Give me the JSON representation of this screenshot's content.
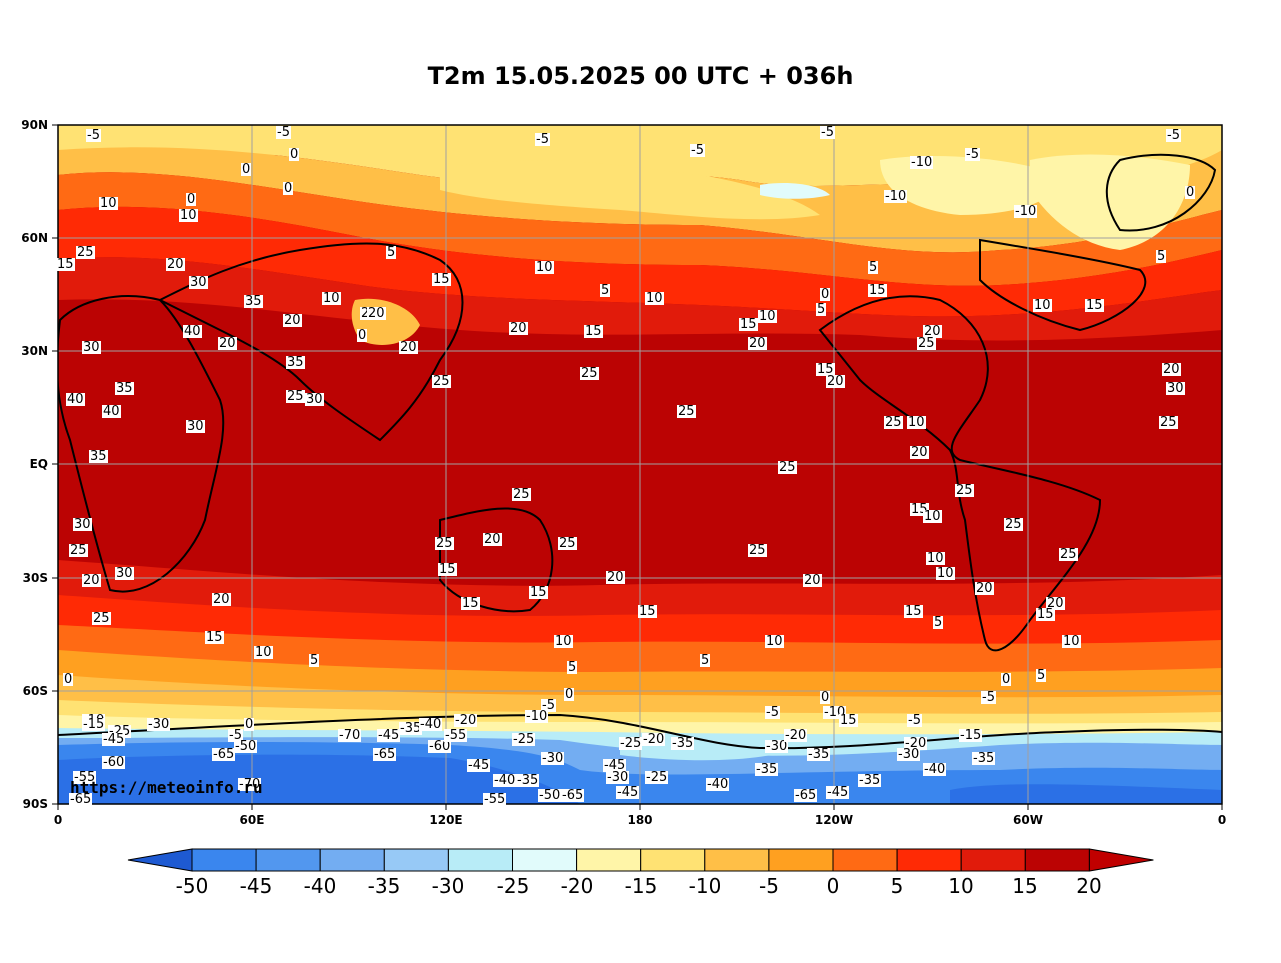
{
  "title": "T2m 15.05.2025 00 UTC + 036h",
  "watermark": "https://meteoinfo.ru",
  "lat_ticks": [
    "90N",
    "60N",
    "30N",
    "EQ",
    "30S",
    "60S",
    "90S"
  ],
  "lon_ticks": [
    "0",
    "60E",
    "120E",
    "180",
    "120W",
    "60W",
    "0"
  ],
  "colorbar": {
    "ticks": [
      "-50",
      "-45",
      "-40",
      "-35",
      "-30",
      "-25",
      "-20",
      "-15",
      "-10",
      "-5",
      "0",
      "5",
      "10",
      "15",
      "20"
    ],
    "colors": [
      "#2b70e6",
      "#3a86ee",
      "#5297ef",
      "#73adf2",
      "#97c9f6",
      "#b8ecf7",
      "#e1fbfb",
      "#fff5a8",
      "#ffe273",
      "#ffbf47",
      "#ffa020",
      "#ff6a14",
      "#ff2a05",
      "#e11b0b",
      "#bb0303"
    ],
    "low_color": "#1e5ad2",
    "high_color": "#c00000"
  },
  "contour_labels": [
    {
      "t": "-5",
      "lon": 11,
      "lat": 87
    },
    {
      "t": "-5",
      "lon": 70,
      "lat": 88
    },
    {
      "t": "-5",
      "lon": 150,
      "lat": 86
    },
    {
      "t": "-5",
      "lon": 198,
      "lat": 83
    },
    {
      "t": "-5",
      "lon": 238,
      "lat": 88
    },
    {
      "t": "-5",
      "lon": 283,
      "lat": 82
    },
    {
      "t": "-5",
      "lon": 345,
      "lat": 87
    },
    {
      "t": "0",
      "lon": 74,
      "lat": 82
    },
    {
      "t": "0",
      "lon": 59,
      "lat": 78
    },
    {
      "t": "0",
      "lon": 72,
      "lat": 73
    },
    {
      "t": "10",
      "lon": 15,
      "lat": 69
    },
    {
      "t": "10",
      "lon": 40,
      "lat": 66
    },
    {
      "t": "0",
      "lon": 42,
      "lat": 70
    },
    {
      "t": "-10",
      "lon": 266,
      "lat": 80
    },
    {
      "t": "-10",
      "lon": 258,
      "lat": 71
    },
    {
      "t": "-10",
      "lon": 298,
      "lat": 67
    },
    {
      "t": "5",
      "lon": 342,
      "lat": 55
    },
    {
      "t": "0",
      "lon": 351,
      "lat": 72
    },
    {
      "t": "15",
      "lon": 2,
      "lat": 53
    },
    {
      "t": "25",
      "lon": 8,
      "lat": 56
    },
    {
      "t": "20",
      "lon": 36,
      "lat": 53
    },
    {
      "t": "30",
      "lon": 43,
      "lat": 48
    },
    {
      "t": "35",
      "lon": 60,
      "lat": 43
    },
    {
      "t": "40",
      "lon": 41,
      "lat": 35
    },
    {
      "t": "30",
      "lon": 10,
      "lat": 31
    },
    {
      "t": "35",
      "lon": 20,
      "lat": 20
    },
    {
      "t": "40",
      "lon": 16,
      "lat": 14
    },
    {
      "t": "30",
      "lon": 42,
      "lat": 10
    },
    {
      "t": "40",
      "lon": 5,
      "lat": 17
    },
    {
      "t": "35",
      "lon": 12,
      "lat": 2
    },
    {
      "t": "30",
      "lon": 7,
      "lat": -16
    },
    {
      "t": "25",
      "lon": 6,
      "lat": -23
    },
    {
      "t": "20",
      "lon": 10,
      "lat": -31
    },
    {
      "t": "25",
      "lon": 13,
      "lat": -41
    },
    {
      "t": "30",
      "lon": 20,
      "lat": -29
    },
    {
      "t": "20",
      "lon": 50,
      "lat": -36
    },
    {
      "t": "15",
      "lon": 48,
      "lat": -46
    },
    {
      "t": "10",
      "lon": 63,
      "lat": -50
    },
    {
      "t": "5",
      "lon": 80,
      "lat": -52
    },
    {
      "t": "0",
      "lon": 60,
      "lat": -69
    },
    {
      "t": "0",
      "lon": 4,
      "lat": -57
    },
    {
      "t": "-5",
      "lon": 55,
      "lat": -72
    },
    {
      "t": "20",
      "lon": 52,
      "lat": 32
    },
    {
      "t": "25",
      "lon": 73,
      "lat": 18
    },
    {
      "t": "35",
      "lon": 73,
      "lat": 27
    },
    {
      "t": "30",
      "lon": 79,
      "lat": 17
    },
    {
      "t": "20",
      "lon": 72,
      "lat": 38
    },
    {
      "t": "10",
      "lon": 84,
      "lat": 44
    },
    {
      "t": "25",
      "lon": 96,
      "lat": 40
    },
    {
      "t": "0",
      "lon": 95,
      "lat": 34
    },
    {
      "t": "20",
      "lon": 98,
      "lat": 40
    },
    {
      "t": "20",
      "lon": 108,
      "lat": 31
    },
    {
      "t": "25",
      "lon": 118,
      "lat": 22
    },
    {
      "t": "15",
      "lon": 118,
      "lat": 49
    },
    {
      "t": "5",
      "lon": 104,
      "lat": 56
    },
    {
      "t": "10",
      "lon": 150,
      "lat": 52
    },
    {
      "t": "20",
      "lon": 142,
      "lat": 36
    },
    {
      "t": "15",
      "lon": 165,
      "lat": 35
    },
    {
      "t": "5",
      "lon": 170,
      "lat": 46
    },
    {
      "t": "10",
      "lon": 184,
      "lat": 44
    },
    {
      "t": "20",
      "lon": 216,
      "lat": 32
    },
    {
      "t": "25",
      "lon": 164,
      "lat": 24
    },
    {
      "t": "25",
      "lon": 194,
      "lat": 14
    },
    {
      "t": "25",
      "lon": 225,
      "lat": -1
    },
    {
      "t": "25",
      "lon": 143,
      "lat": -8
    },
    {
      "t": "20",
      "lon": 134,
      "lat": -20
    },
    {
      "t": "25",
      "lon": 119,
      "lat": -21
    },
    {
      "t": "15",
      "lon": 120,
      "lat": -28
    },
    {
      "t": "15",
      "lon": 127,
      "lat": -37
    },
    {
      "t": "15",
      "lon": 148,
      "lat": -34
    },
    {
      "t": "10",
      "lon": 156,
      "lat": -47
    },
    {
      "t": "25",
      "lon": 157,
      "lat": -21
    },
    {
      "t": "20",
      "lon": 172,
      "lat": -30
    },
    {
      "t": "15",
      "lon": 182,
      "lat": -39
    },
    {
      "t": "5",
      "lon": 160,
      "lat": -54
    },
    {
      "t": "0",
      "lon": 159,
      "lat": -61
    },
    {
      "t": "25",
      "lon": 216,
      "lat": -23
    },
    {
      "t": "20",
      "lon": 233,
      "lat": -31
    },
    {
      "t": "10",
      "lon": 221,
      "lat": -47
    },
    {
      "t": "5",
      "lon": 201,
      "lat": -52
    },
    {
      "t": "-5",
      "lon": 152,
      "lat": -64
    },
    {
      "t": "-10",
      "lon": 147,
      "lat": -67
    },
    {
      "t": "10",
      "lon": 219,
      "lat": 39
    },
    {
      "t": "15",
      "lon": 213,
      "lat": 37
    },
    {
      "t": "15",
      "lon": 237,
      "lat": 25
    },
    {
      "t": "20",
      "lon": 240,
      "lat": 22
    },
    {
      "t": "5",
      "lon": 237,
      "lat": 41
    },
    {
      "t": "0",
      "lon": 238,
      "lat": 45
    },
    {
      "t": "5",
      "lon": 253,
      "lat": 52
    },
    {
      "t": "15",
      "lon": 253,
      "lat": 46
    },
    {
      "t": "20",
      "lon": 270,
      "lat": 35
    },
    {
      "t": "25",
      "lon": 268,
      "lat": 32
    },
    {
      "t": "10",
      "lon": 304,
      "lat": 42
    },
    {
      "t": "15",
      "lon": 320,
      "lat": 42
    },
    {
      "t": "20",
      "lon": 344,
      "lat": 25
    },
    {
      "t": "30",
      "lon": 345,
      "lat": 20
    },
    {
      "t": "25",
      "lon": 343,
      "lat": 11
    },
    {
      "t": "25",
      "lon": 258,
      "lat": 11
    },
    {
      "t": "10",
      "lon": 265,
      "lat": 11
    },
    {
      "t": "20",
      "lon": 266,
      "lat": 3
    },
    {
      "t": "25",
      "lon": 280,
      "lat": -7
    },
    {
      "t": "15",
      "lon": 266,
      "lat": -12
    },
    {
      "t": "10",
      "lon": 270,
      "lat": -14
    },
    {
      "t": "25",
      "lon": 295,
      "lat": -16
    },
    {
      "t": "25",
      "lon": 312,
      "lat": -24
    },
    {
      "t": "10",
      "lon": 271,
      "lat": -25
    },
    {
      "t": "10",
      "lon": 274,
      "lat": -29
    },
    {
      "t": "20",
      "lon": 286,
      "lat": -33
    },
    {
      "t": "20",
      "lon": 308,
      "lat": -37
    },
    {
      "t": "15",
      "lon": 264,
      "lat": -39
    },
    {
      "t": "5",
      "lon": 273,
      "lat": -42
    },
    {
      "t": "15",
      "lon": 305,
      "lat": -40
    },
    {
      "t": "10",
      "lon": 313,
      "lat": -47
    },
    {
      "t": "5",
      "lon": 305,
      "lat": -56
    },
    {
      "t": "0",
      "lon": 294,
      "lat": -57
    },
    {
      "t": "-5",
      "lon": 288,
      "lat": -62
    },
    {
      "t": "0",
      "lon": 238,
      "lat": -62
    },
    {
      "t": "-10",
      "lon": 239,
      "lat": -66
    },
    {
      "t": "15",
      "lon": 244,
      "lat": -68
    },
    {
      "t": "-5",
      "lon": 221,
      "lat": -66
    },
    {
      "t": "-5",
      "lon": 265,
      "lat": -68
    },
    {
      "t": "-10",
      "lon": 10,
      "lat": -68
    },
    {
      "t": "-15",
      "lon": 10,
      "lat": -69
    },
    {
      "t": "-25",
      "lon": 18,
      "lat": -71
    },
    {
      "t": "-45",
      "lon": 16,
      "lat": -73
    },
    {
      "t": "-30",
      "lon": 30,
      "lat": -69
    },
    {
      "t": "-60",
      "lon": 16,
      "lat": -79
    },
    {
      "t": "-55",
      "lon": 7,
      "lat": -83
    },
    {
      "t": "-65",
      "lon": 6,
      "lat": -89
    },
    {
      "t": "-65",
      "lon": 50,
      "lat": -77
    },
    {
      "t": "-50",
      "lon": 57,
      "lat": -75
    },
    {
      "t": "-70",
      "lon": 58,
      "lat": -85
    },
    {
      "t": "-70",
      "lon": 89,
      "lat": -72
    },
    {
      "t": "-65",
      "lon": 100,
      "lat": -77
    },
    {
      "t": "-45",
      "lon": 101,
      "lat": -72
    },
    {
      "t": "-35",
      "lon": 108,
      "lat": -70
    },
    {
      "t": "-40",
      "lon": 114,
      "lat": -69
    },
    {
      "t": "-60",
      "lon": 117,
      "lat": -75
    },
    {
      "t": "-55",
      "lon": 122,
      "lat": -72
    },
    {
      "t": "-20",
      "lon": 125,
      "lat": -68
    },
    {
      "t": "-45",
      "lon": 129,
      "lat": -80
    },
    {
      "t": "-40",
      "lon": 137,
      "lat": -84
    },
    {
      "t": "-35",
      "lon": 144,
      "lat": -84
    },
    {
      "t": "-25",
      "lon": 143,
      "lat": -73
    },
    {
      "t": "-30",
      "lon": 152,
      "lat": -78
    },
    {
      "t": "-55",
      "lon": 134,
      "lat": -89
    },
    {
      "t": "-50",
      "lon": 151,
      "lat": -88
    },
    {
      "t": "-65",
      "lon": 158,
      "lat": -88
    },
    {
      "t": "-25",
      "lon": 176,
      "lat": -74
    },
    {
      "t": "-20",
      "lon": 183,
      "lat": -73
    },
    {
      "t": "-35",
      "lon": 192,
      "lat": -74
    },
    {
      "t": "-45",
      "lon": 171,
      "lat": -80
    },
    {
      "t": "-30",
      "lon": 172,
      "lat": -83
    },
    {
      "t": "-45",
      "lon": 175,
      "lat": -87
    },
    {
      "t": "-25",
      "lon": 184,
      "lat": -83
    },
    {
      "t": "-40",
      "lon": 203,
      "lat": -85
    },
    {
      "t": "-35",
      "lon": 218,
      "lat": -81
    },
    {
      "t": "-30",
      "lon": 221,
      "lat": -75
    },
    {
      "t": "-20",
      "lon": 227,
      "lat": -72
    },
    {
      "t": "-35",
      "lon": 234,
      "lat": -77
    },
    {
      "t": "-45",
      "lon": 240,
      "lat": -87
    },
    {
      "t": "-65",
      "lon": 230,
      "lat": -88
    },
    {
      "t": "-35",
      "lon": 250,
      "lat": -84
    },
    {
      "t": "-20",
      "lon": 264,
      "lat": -74
    },
    {
      "t": "-30",
      "lon": 262,
      "lat": -77
    },
    {
      "t": "-40",
      "lon": 270,
      "lat": -81
    },
    {
      "t": "-15",
      "lon": 281,
      "lat": -72
    },
    {
      "t": "-35",
      "lon": 285,
      "lat": -78
    }
  ]
}
